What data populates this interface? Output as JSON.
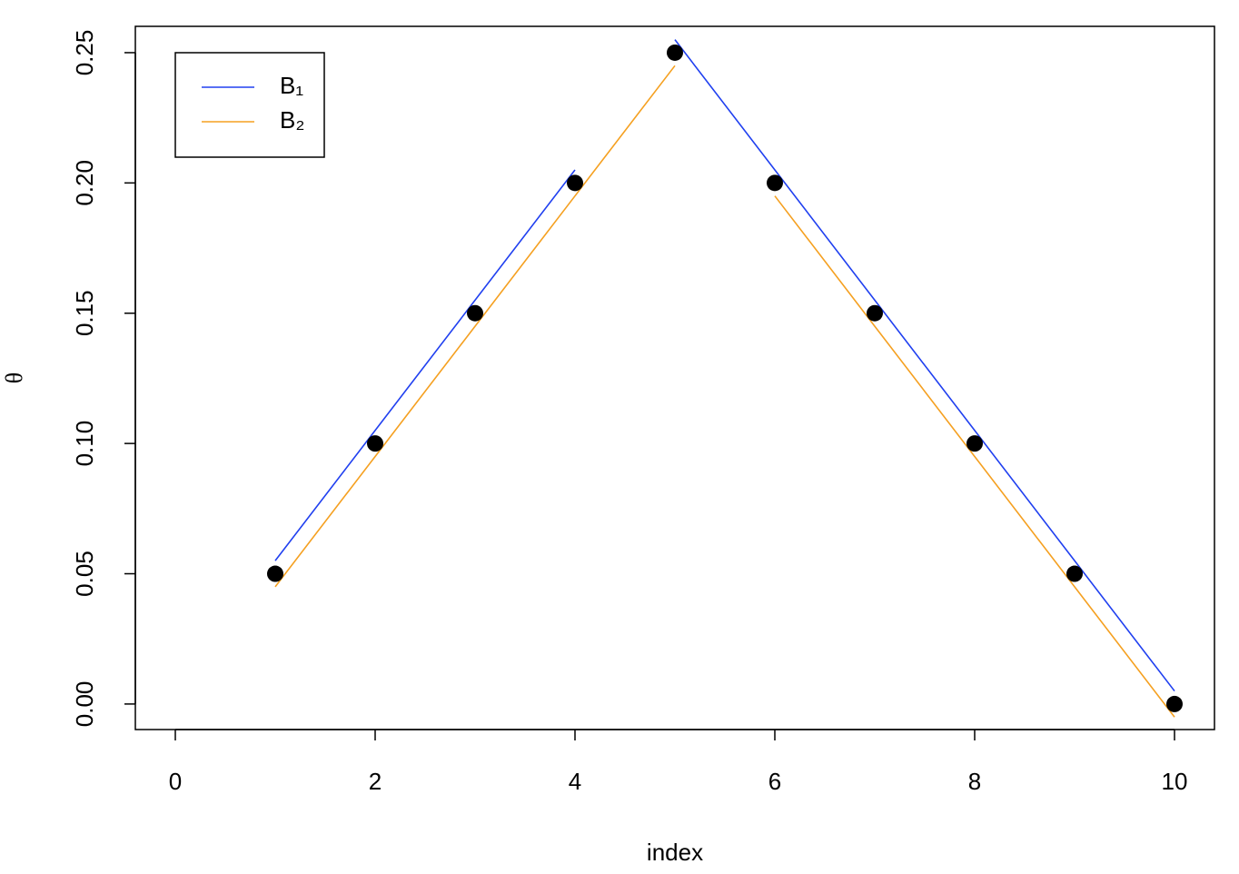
{
  "chart_data": {
    "type": "line",
    "x_label": "index",
    "y_label": "θ",
    "xlim": [
      -0.4,
      10.4
    ],
    "ylim": [
      -0.0098,
      0.2601
    ],
    "xticks": [
      0,
      2,
      4,
      6,
      8,
      10
    ],
    "yticks": [
      {
        "value": 0,
        "label": "0.00"
      },
      {
        "value": 0.05,
        "label": "0.05"
      },
      {
        "value": 0.1,
        "label": "0.10"
      },
      {
        "value": 0.15,
        "label": "0.15"
      },
      {
        "value": 0.2,
        "label": "0.20"
      },
      {
        "value": 0.25,
        "label": "0.25"
      }
    ],
    "points": {
      "color": "#000000",
      "x": [
        1,
        2,
        3,
        4,
        5,
        6,
        7,
        8,
        9,
        10
      ],
      "values": [
        0.05,
        0.1,
        0.15,
        0.2,
        0.25,
        0.2,
        0.15,
        0.1,
        0.05,
        0
      ]
    },
    "series": [
      {
        "name": "B₁",
        "color": "#2040f0",
        "x": [
          1,
          2,
          3,
          4,
          null,
          5,
          6,
          7,
          8,
          9,
          10
        ],
        "values": [
          0.055,
          0.105,
          0.155,
          0.205,
          null,
          0.255,
          0.205,
          0.155,
          0.105,
          0.055,
          0.005
        ]
      },
      {
        "name": "B₂",
        "color": "#f5a020",
        "x": [
          1,
          2,
          3,
          4,
          5,
          null,
          6,
          7,
          8,
          9,
          10
        ],
        "values": [
          0.045,
          0.095,
          0.145,
          0.195,
          0.245,
          null,
          0.195,
          0.145,
          0.095,
          0.045,
          -0.005
        ]
      }
    ],
    "legend": "top-left"
  }
}
